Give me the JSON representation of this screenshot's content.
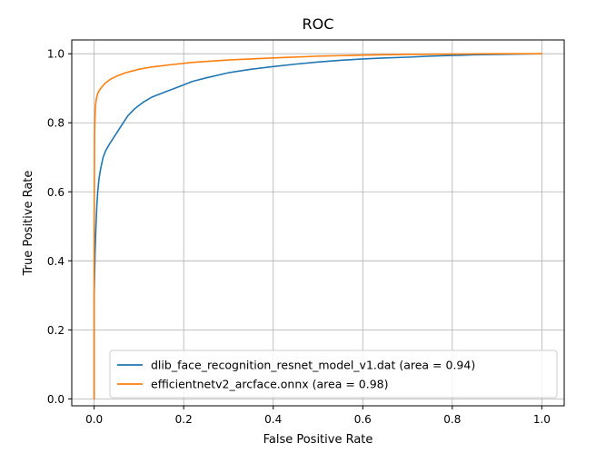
{
  "chart_data": {
    "type": "line",
    "title": "ROC",
    "xlabel": "False Positive Rate",
    "ylabel": "True Positive Rate",
    "xlim": [
      -0.05,
      1.05
    ],
    "ylim": [
      -0.02,
      1.04
    ],
    "xticks": [
      "0.0",
      "0.2",
      "0.4",
      "0.6",
      "0.8",
      "1.0"
    ],
    "yticks": [
      "0.0",
      "0.2",
      "0.4",
      "0.6",
      "0.8",
      "1.0"
    ],
    "grid": true,
    "legend_position": "lower right",
    "series": [
      {
        "name": "dlib_face_recognition_resnet_model_v1.dat (area = 0.94)",
        "color": "#1f77b4",
        "x": [
          0.0,
          0.0,
          0.002,
          0.004,
          0.006,
          0.008,
          0.011,
          0.015,
          0.02,
          0.026,
          0.035,
          0.045,
          0.06,
          0.075,
          0.09,
          0.11,
          0.13,
          0.16,
          0.19,
          0.22,
          0.25,
          0.3,
          0.35,
          0.4,
          0.45,
          0.5,
          0.55,
          0.6,
          0.65,
          0.7,
          0.75,
          0.8,
          0.85,
          0.9,
          0.95,
          1.0
        ],
        "y": [
          0.0,
          0.3,
          0.42,
          0.5,
          0.56,
          0.6,
          0.64,
          0.67,
          0.7,
          0.72,
          0.74,
          0.76,
          0.79,
          0.82,
          0.84,
          0.86,
          0.875,
          0.89,
          0.905,
          0.92,
          0.93,
          0.945,
          0.955,
          0.963,
          0.97,
          0.976,
          0.981,
          0.985,
          0.988,
          0.99,
          0.993,
          0.995,
          0.997,
          0.998,
          0.999,
          1.0
        ]
      },
      {
        "name": "efficientnetv2_arcface.onnx (area = 0.98)",
        "color": "#ff7f0e",
        "x": [
          0.0,
          0.0,
          0.001,
          0.002,
          0.003,
          0.005,
          0.008,
          0.012,
          0.018,
          0.025,
          0.035,
          0.05,
          0.07,
          0.1,
          0.13,
          0.17,
          0.22,
          0.3,
          0.4,
          0.5,
          0.6,
          0.7,
          0.8,
          0.9,
          1.0
        ],
        "y": [
          0.0,
          0.5,
          0.78,
          0.82,
          0.85,
          0.87,
          0.885,
          0.895,
          0.905,
          0.915,
          0.925,
          0.935,
          0.945,
          0.955,
          0.962,
          0.968,
          0.975,
          0.982,
          0.988,
          0.993,
          0.996,
          0.998,
          0.999,
          1.0,
          1.0
        ]
      }
    ]
  }
}
